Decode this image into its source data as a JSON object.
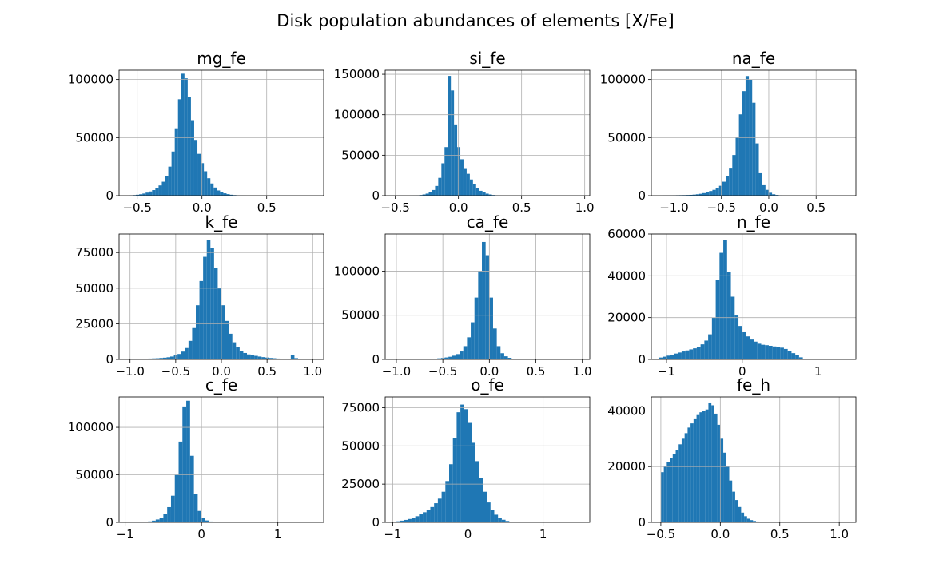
{
  "figure": {
    "title": "Disk population  abundances of elements [X/Fe]",
    "bar_color": "#1f77b4",
    "grid_color": "#b0b0b0"
  },
  "chart_data": [
    {
      "type": "bar",
      "title": "mg_fe",
      "xlim": [
        -0.64,
        0.94
      ],
      "ylim": [
        0,
        108000
      ],
      "xticks": [
        -0.5,
        0.0,
        0.5
      ],
      "xtick_labels": [
        "−0.5",
        "0.0",
        "0.5"
      ],
      "yticks": [
        0,
        50000,
        100000
      ],
      "ytick_labels": [
        "0",
        "50000",
        "100000"
      ],
      "grid": true,
      "bin_start": -0.56,
      "bin_width": 0.025,
      "values": [
        300,
        500,
        800,
        1200,
        1800,
        2600,
        3600,
        4800,
        6500,
        8800,
        12000,
        17000,
        25000,
        38000,
        58000,
        83000,
        105000,
        101000,
        85000,
        65000,
        48000,
        36000,
        28000,
        21000,
        15000,
        10500,
        7000,
        4500,
        3000,
        2000,
        1300,
        800,
        500,
        300,
        200,
        120
      ]
    },
    {
      "type": "bar",
      "title": "si_fe",
      "xlim": [
        -0.58,
        1.04
      ],
      "ylim": [
        0,
        155000
      ],
      "xticks": [
        -0.5,
        0.0,
        0.5,
        1.0
      ],
      "xtick_labels": [
        "−0.5",
        "0.0",
        "0.5",
        "1.0"
      ],
      "yticks": [
        0,
        50000,
        100000,
        150000
      ],
      "ytick_labels": [
        "0",
        "50000",
        "100000",
        "150000"
      ],
      "grid": true,
      "bin_start": -0.36,
      "bin_width": 0.025,
      "values": [
        200,
        400,
        800,
        1500,
        2500,
        4000,
        7000,
        12000,
        22000,
        40000,
        60000,
        148000,
        130000,
        88000,
        60000,
        45000,
        34000,
        27000,
        20000,
        14000,
        9000,
        6000,
        4000,
        2500,
        1500,
        800,
        400,
        200
      ]
    },
    {
      "type": "bar",
      "title": "na_fe",
      "xlim": [
        -1.24,
        0.92
      ],
      "ylim": [
        0,
        108000
      ],
      "xticks": [
        -1.0,
        -0.5,
        0.0,
        0.5
      ],
      "xtick_labels": [
        "−1.0",
        "−0.5",
        "0.0",
        "0.5"
      ],
      "yticks": [
        0,
        50000,
        100000
      ],
      "ytick_labels": [
        "0",
        "50000",
        "100000"
      ],
      "grid": true,
      "bin_start": -1.12,
      "bin_width": 0.035,
      "values": [
        200,
        250,
        300,
        350,
        400,
        450,
        500,
        600,
        700,
        900,
        1200,
        1600,
        2200,
        3000,
        4000,
        5000,
        6500,
        8500,
        12000,
        17000,
        24000,
        35000,
        50000,
        70000,
        90000,
        103000,
        100000,
        80000,
        45000,
        20000,
        9000,
        5000,
        2500,
        1200,
        600,
        300
      ]
    },
    {
      "type": "bar",
      "title": "k_fe",
      "xlim": [
        -1.12,
        1.12
      ],
      "ylim": [
        0,
        88000
      ],
      "xticks": [
        -1.0,
        -0.5,
        0.0,
        0.5,
        1.0
      ],
      "xtick_labels": [
        "−1.0",
        "−0.5",
        "0.0",
        "0.5",
        "1.0"
      ],
      "yticks": [
        0,
        25000,
        50000,
        75000
      ],
      "ytick_labels": [
        "0",
        "25000",
        "50000",
        "75000"
      ],
      "grid": true,
      "bin_start": -1.04,
      "bin_width": 0.04,
      "values": [
        300,
        0,
        200,
        300,
        400,
        500,
        600,
        700,
        800,
        1000,
        1200,
        1500,
        2000,
        2800,
        3800,
        5500,
        8000,
        13000,
        22000,
        38000,
        55000,
        72000,
        84000,
        78000,
        64000,
        50000,
        38000,
        27000,
        18000,
        12000,
        8500,
        6000,
        4500,
        3500,
        3000,
        2500,
        2000,
        1600,
        1300,
        1000,
        800,
        600,
        400,
        300,
        200,
        3000,
        900
      ]
    },
    {
      "type": "bar",
      "title": "ca_fe",
      "xlim": [
        -1.12,
        1.08
      ],
      "ylim": [
        0,
        142000
      ],
      "xticks": [
        -1.0,
        -0.5,
        0.0,
        0.5,
        1.0
      ],
      "xtick_labels": [
        "−1.0",
        "−0.5",
        "0.0",
        "0.5",
        "1.0"
      ],
      "yticks": [
        0,
        50000,
        100000
      ],
      "ytick_labels": [
        "0",
        "50000",
        "100000"
      ],
      "grid": true,
      "bin_start": -0.72,
      "bin_width": 0.04,
      "values": [
        300,
        500,
        700,
        900,
        1200,
        1600,
        2200,
        3000,
        4200,
        6000,
        9000,
        15000,
        25000,
        42000,
        70000,
        100000,
        133000,
        118000,
        70000,
        35000,
        15000,
        7000,
        3500,
        1800,
        900,
        500,
        300,
        200
      ]
    },
    {
      "type": "bar",
      "title": "n_fe",
      "xlim": [
        -1.2,
        1.5
      ],
      "ylim": [
        0,
        60000
      ],
      "xticks": [
        -1,
        0,
        1
      ],
      "xtick_labels": [
        "−1",
        "0",
        "1"
      ],
      "yticks": [
        0,
        20000,
        40000,
        60000
      ],
      "ytick_labels": [
        "0",
        "20000",
        "40000",
        "60000"
      ],
      "grid": true,
      "bin_start": -1.1,
      "bin_width": 0.05,
      "values": [
        900,
        1300,
        1800,
        2300,
        2800,
        3300,
        3800,
        4300,
        4800,
        5300,
        6000,
        7200,
        9000,
        12000,
        20000,
        38000,
        51000,
        57000,
        42000,
        30000,
        21000,
        16000,
        13000,
        11000,
        9500,
        8500,
        7500,
        7000,
        6800,
        6500,
        6200,
        6000,
        5600,
        5000,
        4000,
        3000,
        2000,
        1000
      ]
    },
    {
      "type": "bar",
      "title": "c_fe",
      "xlim": [
        -1.08,
        1.6
      ],
      "ylim": [
        0,
        132000
      ],
      "xticks": [
        -1,
        0,
        1
      ],
      "xtick_labels": [
        "−1",
        "0",
        "1"
      ],
      "yticks": [
        0,
        50000,
        100000
      ],
      "ytick_labels": [
        "0",
        "50000",
        "100000"
      ],
      "grid": true,
      "bin_start": -0.8,
      "bin_width": 0.05,
      "values": [
        300,
        600,
        1000,
        1800,
        3000,
        5000,
        9000,
        16000,
        28000,
        50000,
        85000,
        122000,
        128000,
        70000,
        30000,
        12000,
        5000,
        2000,
        900,
        400,
        200
      ]
    },
    {
      "type": "bar",
      "title": "o_fe",
      "xlim": [
        -1.1,
        1.62
      ],
      "ylim": [
        0,
        82000
      ],
      "xticks": [
        -1,
        0,
        1
      ],
      "xtick_labels": [
        "−1",
        "0",
        "1"
      ],
      "yticks": [
        0,
        25000,
        50000,
        75000
      ],
      "ytick_labels": [
        "0",
        "25000",
        "50000",
        "75000"
      ],
      "grid": true,
      "bin_start": -1.0,
      "bin_width": 0.05,
      "values": [
        400,
        700,
        1100,
        1600,
        2200,
        3000,
        4000,
        5200,
        6600,
        8200,
        10000,
        12500,
        15500,
        20000,
        27000,
        38000,
        55000,
        72000,
        77000,
        74000,
        65000,
        52000,
        40000,
        29000,
        20000,
        13000,
        8000,
        5000,
        3000,
        1700,
        900,
        500,
        250,
        120
      ]
    },
    {
      "type": "bar",
      "title": "fe_h",
      "xlim": [
        -0.58,
        1.14
      ],
      "ylim": [
        0,
        45000
      ],
      "xticks": [
        -0.5,
        0.0,
        0.5,
        1.0
      ],
      "xtick_labels": [
        "−0.5",
        "0.0",
        "0.5",
        "1.0"
      ],
      "yticks": [
        0,
        20000,
        40000
      ],
      "ytick_labels": [
        "0",
        "20000",
        "40000"
      ],
      "grid": true,
      "bin_start": -0.5,
      "bin_width": 0.025,
      "values": [
        18000,
        20000,
        21500,
        23000,
        24500,
        26000,
        28000,
        30000,
        32000,
        34000,
        35500,
        37000,
        38500,
        39500,
        40000,
        40500,
        43000,
        42000,
        39000,
        35000,
        30000,
        25000,
        20000,
        15000,
        11000,
        8000,
        5500,
        3500,
        2200,
        1300,
        800,
        500,
        300,
        150,
        80,
        40,
        20,
        10
      ]
    }
  ]
}
